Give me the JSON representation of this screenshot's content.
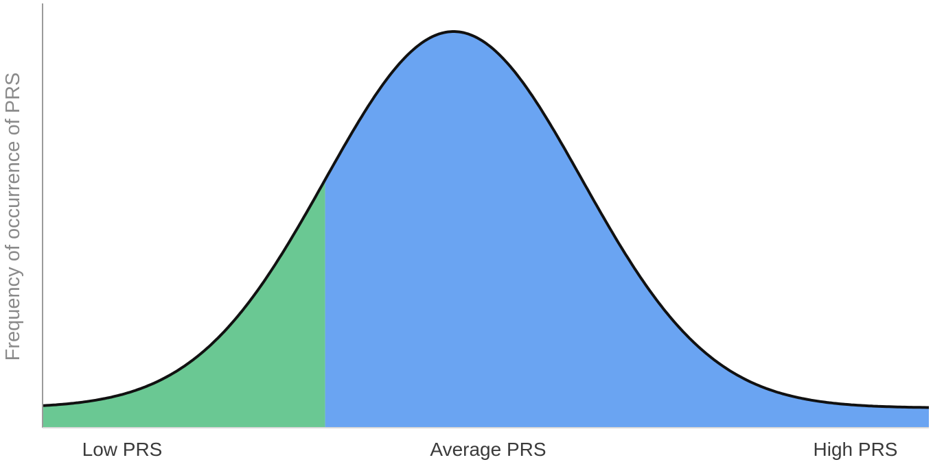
{
  "chart_data": {
    "type": "area",
    "title": "",
    "xlabel": "",
    "ylabel": "Frequency of occurrence of PRS",
    "tick_labels": [
      "Low PRS",
      "Average PRS",
      "High PRS"
    ],
    "distribution": "normal",
    "x_range": [
      -3.2,
      3.7
    ],
    "mean": 0,
    "std_dev": 1,
    "baseline_fraction": 0.05,
    "highlight_threshold_sd": -1,
    "regions": [
      {
        "name": "",
        "from_sd": -3.2,
        "to_sd": -1,
        "color": "#6ac893"
      },
      {
        "name": "",
        "from_sd": -1,
        "to_sd": 3.7,
        "color": "#6aa4f2"
      }
    ],
    "curve_color": "#111111",
    "axis_color": "#9a9a9a",
    "grid": false
  }
}
